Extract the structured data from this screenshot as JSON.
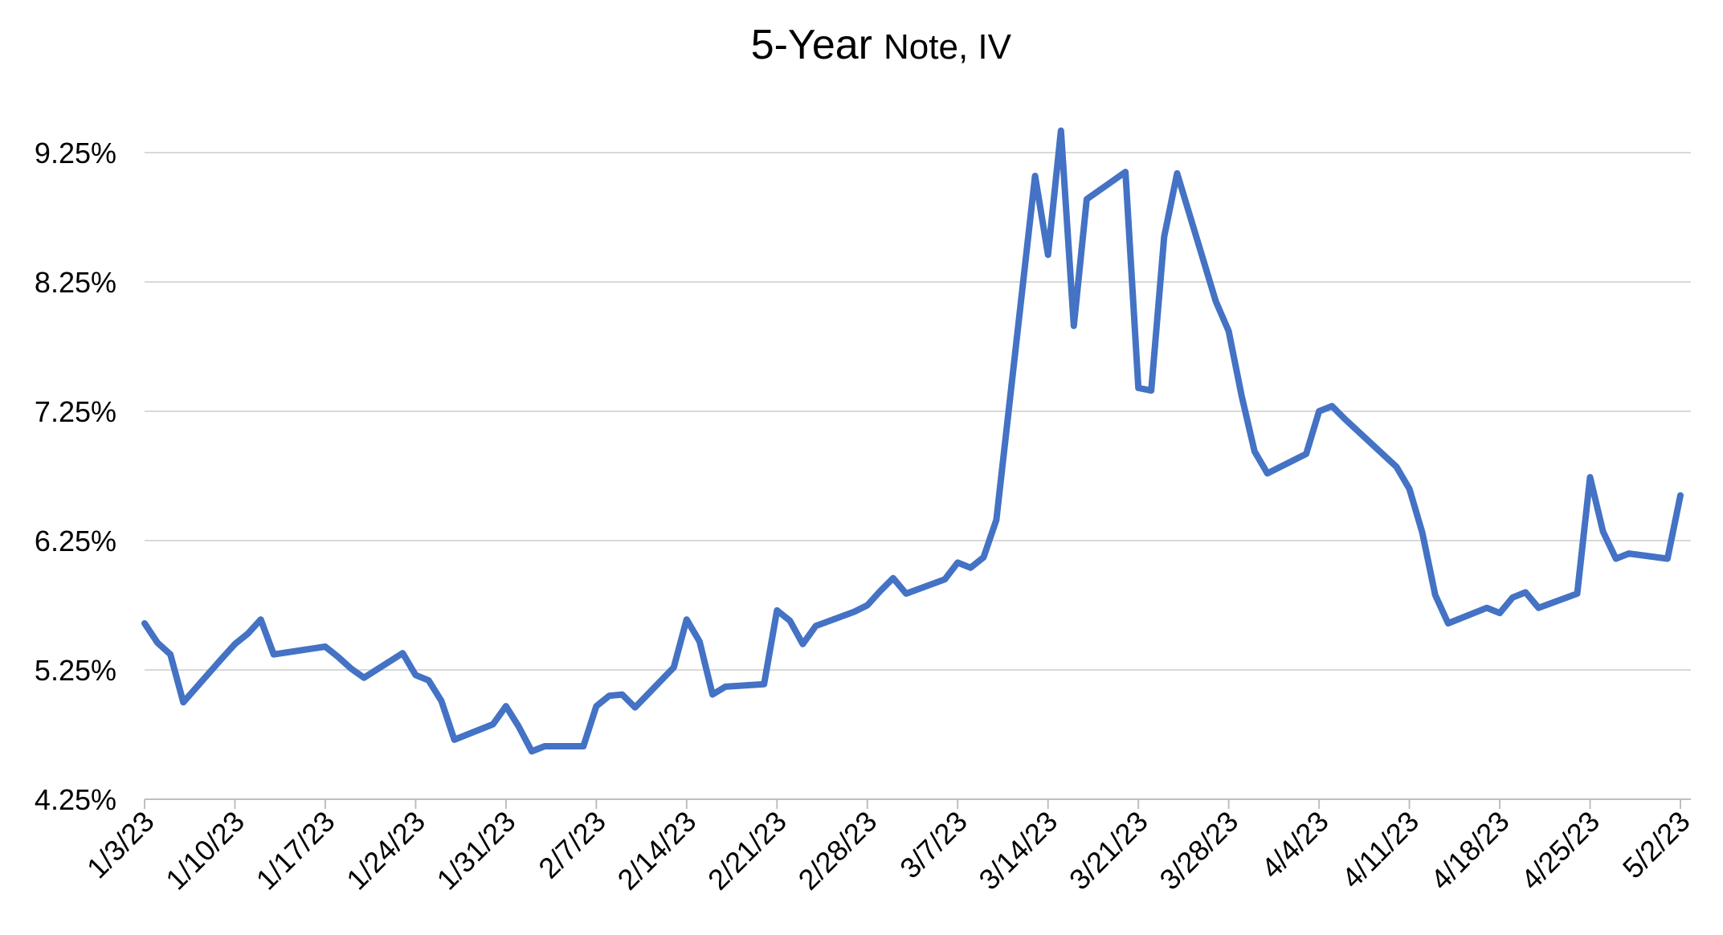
{
  "chart_data": {
    "type": "line",
    "title": "5-Year",
    "subtitle": "Note, IV",
    "xlabel": "",
    "ylabel": "",
    "ylim": [
      4.25,
      9.75
    ],
    "y_ticks": [
      4.25,
      5.25,
      6.25,
      7.25,
      8.25,
      9.25
    ],
    "y_tick_labels": [
      "4.25%",
      "5.25%",
      "6.25%",
      "7.25%",
      "8.25%",
      "9.25%"
    ],
    "x_range": [
      "2023-01-03",
      "2023-05-02"
    ],
    "x_tick_dates": [
      "2023-01-03",
      "2023-01-10",
      "2023-01-17",
      "2023-01-24",
      "2023-01-31",
      "2023-02-07",
      "2023-02-14",
      "2023-02-21",
      "2023-02-28",
      "2023-03-07",
      "2023-03-14",
      "2023-03-21",
      "2023-03-28",
      "2023-04-04",
      "2023-04-11",
      "2023-04-18",
      "2023-04-25",
      "2023-05-02"
    ],
    "x_tick_labels": [
      "1/3/23",
      "1/10/23",
      "1/17/23",
      "1/24/23",
      "1/31/23",
      "2/7/23",
      "2/14/23",
      "2/21/23",
      "2/28/23",
      "3/7/23",
      "3/14/23",
      "3/21/23",
      "3/28/23",
      "4/4/23",
      "4/11/23",
      "4/18/23",
      "4/25/23",
      "5/2/23"
    ],
    "grid": true,
    "line_color": "#4472C4",
    "series": [
      {
        "name": "",
        "x": [
          "2023-01-03",
          "2023-01-04",
          "2023-01-05",
          "2023-01-06",
          "2023-01-09",
          "2023-01-10",
          "2023-01-11",
          "2023-01-12",
          "2023-01-13",
          "2023-01-17",
          "2023-01-18",
          "2023-01-19",
          "2023-01-20",
          "2023-01-23",
          "2023-01-24",
          "2023-01-25",
          "2023-01-26",
          "2023-01-27",
          "2023-01-30",
          "2023-01-31",
          "2023-02-01",
          "2023-02-02",
          "2023-02-03",
          "2023-02-06",
          "2023-02-07",
          "2023-02-08",
          "2023-02-09",
          "2023-02-10",
          "2023-02-13",
          "2023-02-14",
          "2023-02-15",
          "2023-02-16",
          "2023-02-17",
          "2023-02-20",
          "2023-02-21",
          "2023-02-22",
          "2023-02-23",
          "2023-02-24",
          "2023-02-27",
          "2023-02-28",
          "2023-03-01",
          "2023-03-02",
          "2023-03-03",
          "2023-03-06",
          "2023-03-07",
          "2023-03-08",
          "2023-03-09",
          "2023-03-10",
          "2023-03-13",
          "2023-03-14",
          "2023-03-15",
          "2023-03-16",
          "2023-03-17",
          "2023-03-20",
          "2023-03-21",
          "2023-03-22",
          "2023-03-23",
          "2023-03-24",
          "2023-03-27",
          "2023-03-28",
          "2023-03-29",
          "2023-03-30",
          "2023-03-31",
          "2023-04-03",
          "2023-04-04",
          "2023-04-05",
          "2023-04-06",
          "2023-04-10",
          "2023-04-11",
          "2023-04-12",
          "2023-04-13",
          "2023-04-14",
          "2023-04-17",
          "2023-04-18",
          "2023-04-19",
          "2023-04-20",
          "2023-04-21",
          "2023-04-24",
          "2023-04-25",
          "2023-04-26",
          "2023-04-27",
          "2023-04-28",
          "2023-05-01",
          "2023-05-02"
        ],
        "values": [
          5.61,
          5.46,
          5.37,
          5.0,
          5.34,
          5.45,
          5.53,
          5.64,
          5.37,
          5.43,
          5.35,
          5.26,
          5.19,
          5.38,
          5.21,
          5.17,
          5.01,
          4.71,
          4.83,
          4.97,
          4.81,
          4.62,
          4.66,
          4.66,
          4.97,
          5.05,
          5.06,
          4.96,
          5.27,
          5.64,
          5.47,
          5.06,
          5.12,
          5.14,
          5.71,
          5.63,
          5.45,
          5.59,
          5.7,
          5.75,
          5.86,
          5.96,
          5.84,
          5.95,
          6.08,
          6.04,
          6.12,
          6.41,
          9.07,
          8.46,
          9.42,
          7.91,
          8.89,
          9.1,
          7.43,
          7.41,
          8.6,
          9.09,
          8.1,
          7.87,
          7.37,
          6.94,
          6.77,
          6.92,
          7.25,
          7.29,
          7.19,
          6.82,
          6.65,
          6.31,
          5.83,
          5.61,
          5.73,
          5.69,
          5.81,
          5.85,
          5.73,
          5.84,
          6.74,
          6.32,
          6.11,
          6.15,
          6.11,
          6.6
        ]
      }
    ]
  }
}
